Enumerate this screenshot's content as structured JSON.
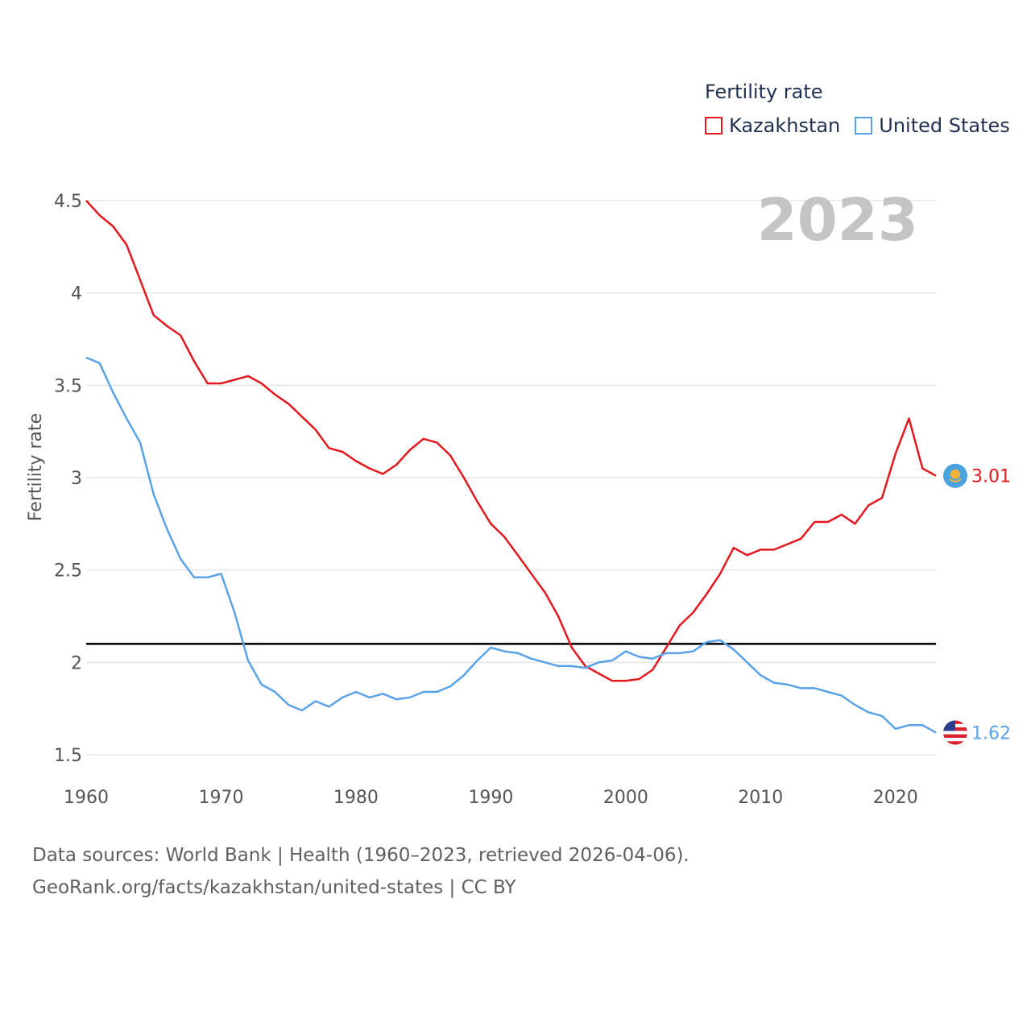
{
  "legend": {
    "title": "Fertility rate",
    "items": [
      {
        "label": "Kazakhstan",
        "color": "#e3181e"
      },
      {
        "label": "United States",
        "color": "#5aa2e8"
      }
    ]
  },
  "footer": {
    "line1": "Data sources: World Bank | Health (1960–2023, retrieved 2026-04-06).",
    "line2": "GeoRank.org/facts/kazakhstan/united-states | CC BY"
  },
  "chart_data": {
    "type": "line",
    "title": "Fertility rate",
    "current_year_label": "2023",
    "xlabel": "",
    "ylabel": "Fertility rate",
    "xlim": [
      1960,
      2023
    ],
    "ylim": [
      1.5,
      4.5
    ],
    "x_ticks": [
      1960,
      1970,
      1980,
      1990,
      2000,
      2010,
      2020
    ],
    "y_ticks": [
      "1.5",
      "2",
      "2.5",
      "3",
      "3.5",
      "4",
      "4.5"
    ],
    "grid": true,
    "legend_position": "top-right",
    "reference_line": {
      "y": 2.1,
      "color": "#000000"
    },
    "x": [
      1960,
      1961,
      1962,
      1963,
      1964,
      1965,
      1966,
      1967,
      1968,
      1969,
      1970,
      1971,
      1972,
      1973,
      1974,
      1975,
      1976,
      1977,
      1978,
      1979,
      1980,
      1981,
      1982,
      1983,
      1984,
      1985,
      1986,
      1987,
      1988,
      1989,
      1990,
      1991,
      1992,
      1993,
      1994,
      1995,
      1996,
      1997,
      1998,
      1999,
      2000,
      2001,
      2002,
      2003,
      2004,
      2005,
      2006,
      2007,
      2008,
      2009,
      2010,
      2011,
      2012,
      2013,
      2014,
      2015,
      2016,
      2017,
      2018,
      2019,
      2020,
      2021,
      2022,
      2023
    ],
    "series": [
      {
        "name": "Kazakhstan",
        "color": "#e3181e",
        "end_label": "3.01",
        "values": [
          4.5,
          4.42,
          4.36,
          4.26,
          4.07,
          3.88,
          3.82,
          3.77,
          3.63,
          3.51,
          3.51,
          3.53,
          3.55,
          3.51,
          3.45,
          3.4,
          3.33,
          3.26,
          3.16,
          3.14,
          3.09,
          3.05,
          3.02,
          3.07,
          3.15,
          3.21,
          3.19,
          3.12,
          3.0,
          2.87,
          2.75,
          2.68,
          2.58,
          2.48,
          2.38,
          2.25,
          2.08,
          1.98,
          1.94,
          1.9,
          1.9,
          1.91,
          1.96,
          2.08,
          2.2,
          2.27,
          2.37,
          2.48,
          2.62,
          2.58,
          2.61,
          2.61,
          2.64,
          2.67,
          2.76,
          2.76,
          2.8,
          2.75,
          2.85,
          2.89,
          3.13,
          3.32,
          3.05,
          3.01
        ]
      },
      {
        "name": "United States",
        "color": "#5aa2e8",
        "end_label": "1.62",
        "values": [
          3.65,
          3.62,
          3.46,
          3.32,
          3.19,
          2.91,
          2.72,
          2.56,
          2.46,
          2.46,
          2.48,
          2.27,
          2.01,
          1.88,
          1.84,
          1.77,
          1.74,
          1.79,
          1.76,
          1.81,
          1.84,
          1.81,
          1.83,
          1.8,
          1.81,
          1.84,
          1.84,
          1.87,
          1.93,
          2.01,
          2.08,
          2.06,
          2.05,
          2.02,
          2.0,
          1.98,
          1.98,
          1.97,
          2.0,
          2.01,
          2.06,
          2.03,
          2.02,
          2.05,
          2.05,
          2.06,
          2.11,
          2.12,
          2.07,
          2.0,
          1.93,
          1.89,
          1.88,
          1.86,
          1.86,
          1.84,
          1.82,
          1.77,
          1.73,
          1.71,
          1.64,
          1.66,
          1.66,
          1.62
        ]
      }
    ]
  }
}
